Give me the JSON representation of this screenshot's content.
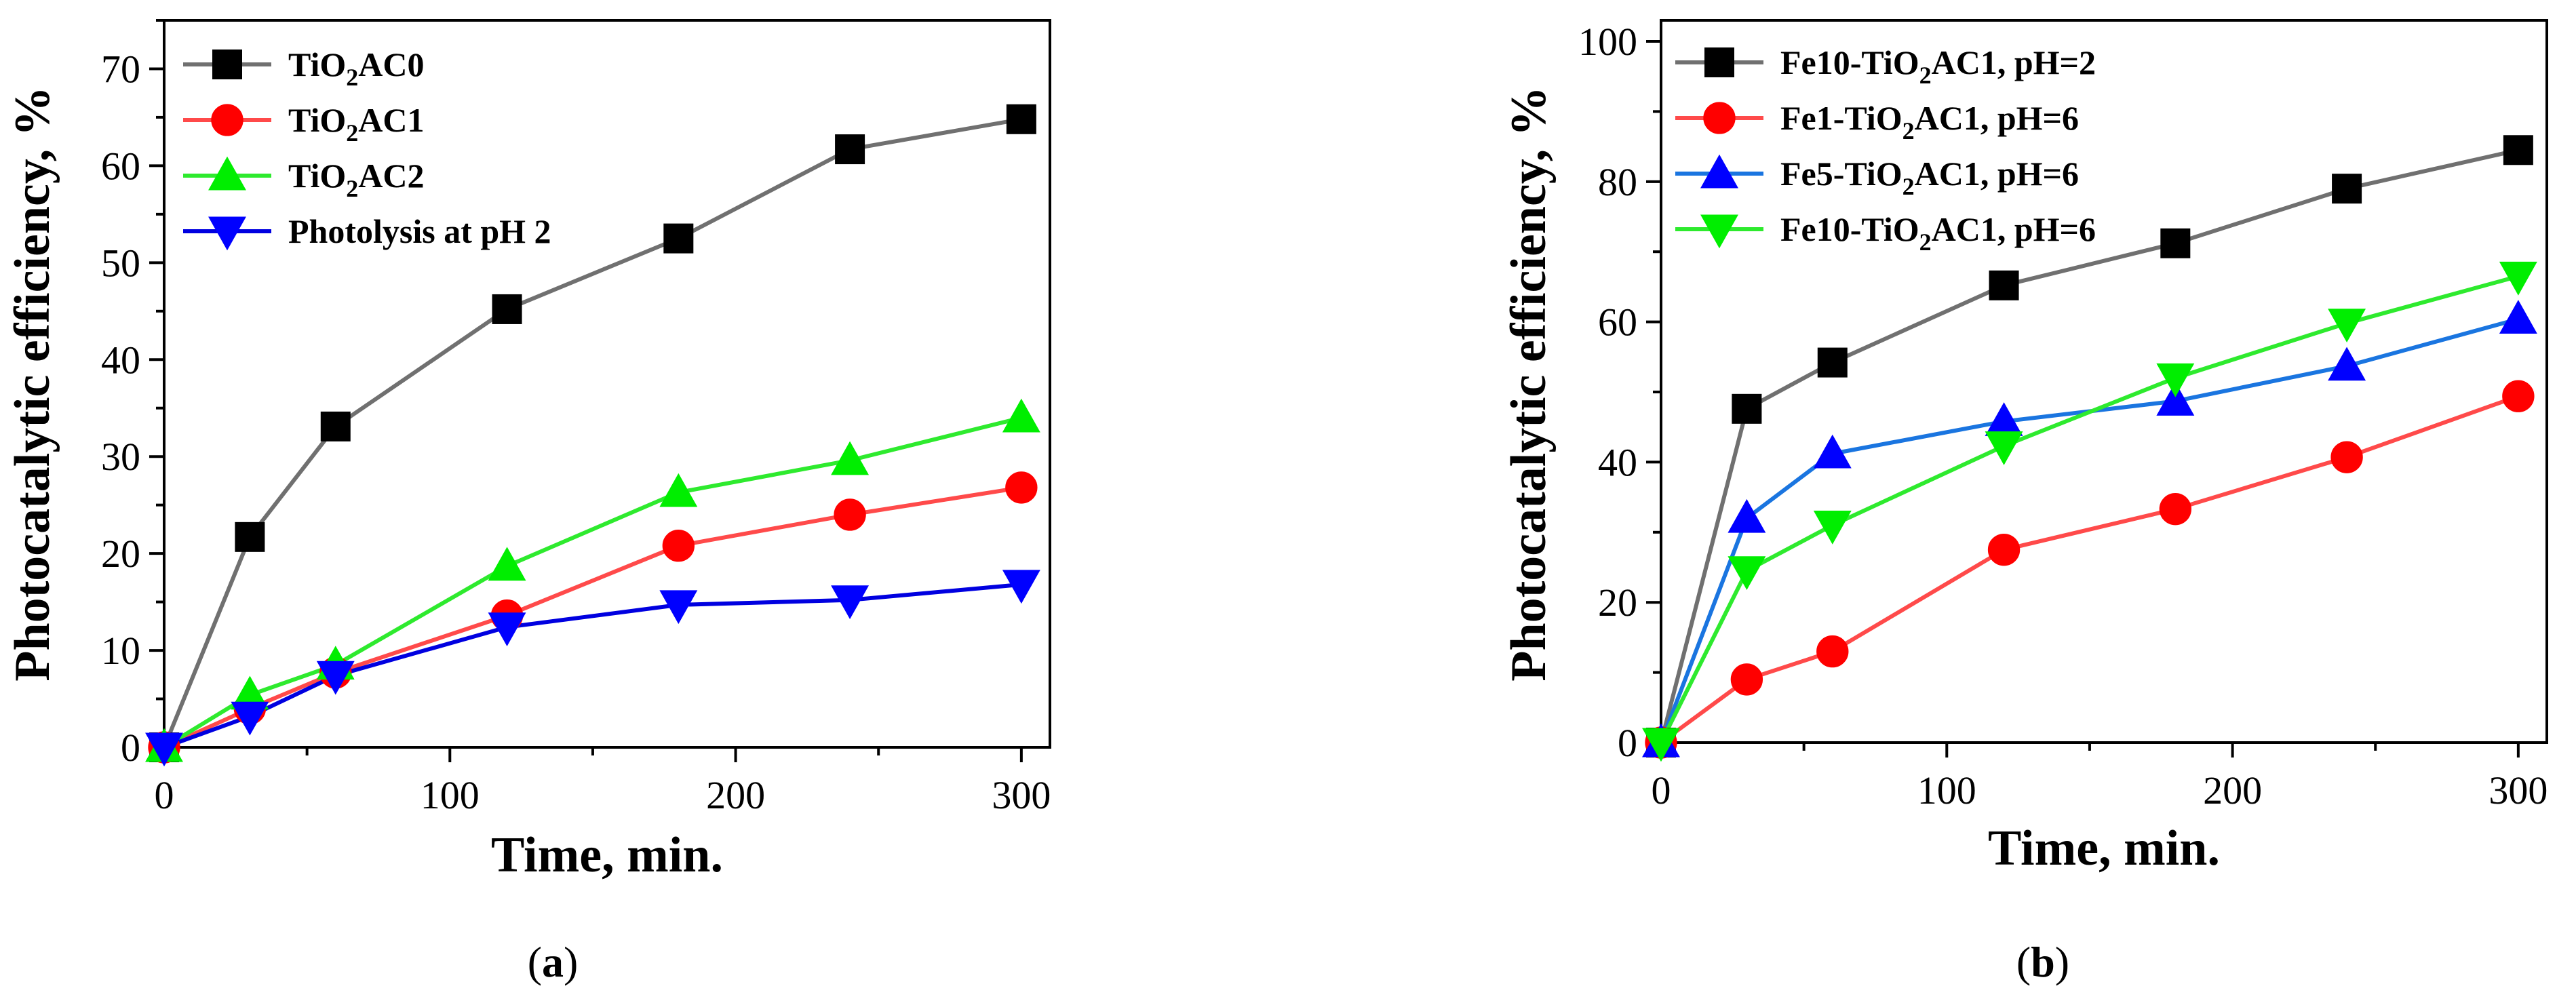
{
  "chart_data": [
    {
      "type": "line",
      "panel_label": "a",
      "xlabel": "Time, min.",
      "ylabel": "Photocatalytic efficiency, %",
      "xlim": [
        0,
        310
      ],
      "ylim": [
        0,
        75
      ],
      "xticks": [
        0,
        100,
        200,
        300
      ],
      "yticks": [
        0,
        10,
        20,
        30,
        40,
        50,
        60,
        70
      ],
      "legend_location": "top-left",
      "x": [
        0,
        30,
        60,
        120,
        180,
        240,
        300
      ],
      "series": [
        {
          "name_main": "TiO",
          "name_sub": "2",
          "name_rest": "AC0",
          "color": "#707070",
          "marker": "square",
          "marker_color": "#000000",
          "values": [
            0,
            21.7,
            33.1,
            45.2,
            52.5,
            61.7,
            64.8
          ]
        },
        {
          "name_main": "TiO",
          "name_sub": "2",
          "name_rest": "AC1",
          "color": "#ff4a4a",
          "marker": "circle",
          "marker_color": "#ff0000",
          "values": [
            0,
            4.0,
            7.7,
            13.6,
            20.8,
            24.0,
            26.8
          ]
        },
        {
          "name_main": "TiO",
          "name_sub": "2",
          "name_rest": "AC2",
          "color": "#2eea2e",
          "marker": "triangle-up",
          "marker_color": "#00ee00",
          "values": [
            0,
            5.4,
            8.5,
            18.7,
            26.3,
            29.6,
            34.0
          ]
        },
        {
          "name_main": "Photolysis at pH 2",
          "name_sub": "",
          "name_rest": "",
          "color": "#0000e0",
          "marker": "triangle-down",
          "marker_color": "#0000ff",
          "values": [
            0,
            3.2,
            7.4,
            12.4,
            14.7,
            15.2,
            16.8
          ]
        }
      ]
    },
    {
      "type": "line",
      "panel_label": "b",
      "xlabel": "Time, min.",
      "ylabel": "Photocatalytic efficiency, %",
      "xlim": [
        0,
        310
      ],
      "ylim": [
        0,
        103
      ],
      "xticks": [
        0,
        100,
        200,
        300
      ],
      "yticks": [
        0,
        20,
        40,
        60,
        80,
        100
      ],
      "legend_location": "top-left",
      "x": [
        0,
        30,
        60,
        120,
        180,
        240,
        300
      ],
      "series": [
        {
          "name_main": "Fe10-TiO",
          "name_sub": "2",
          "name_rest": "AC1, pH=2",
          "color": "#707070",
          "marker": "square",
          "marker_color": "#000000",
          "values": [
            0,
            47.6,
            54.2,
            65.2,
            71.2,
            79.0,
            84.5
          ]
        },
        {
          "name_main": "Fe1-TiO",
          "name_sub": "2",
          "name_rest": "AC1, pH=6",
          "color": "#ff4a4a",
          "marker": "circle",
          "marker_color": "#ff0000",
          "values": [
            0,
            9.0,
            13.0,
            27.5,
            33.3,
            40.7,
            49.4
          ]
        },
        {
          "name_main": "Fe5-TiO",
          "name_sub": "2",
          "name_rest": "AC1, pH=6",
          "color": "#1a75e0",
          "marker": "triangle-up",
          "marker_color": "#0000ff",
          "values": [
            0,
            32.0,
            41.2,
            45.8,
            48.7,
            53.7,
            60.4
          ]
        },
        {
          "name_main": "Fe10-TiO",
          "name_sub": "2",
          "name_rest": "AC1, pH=6",
          "color": "#2eea2e",
          "marker": "triangle-down",
          "marker_color": "#00ee00",
          "values": [
            0,
            24.5,
            31.0,
            42.3,
            52.0,
            59.8,
            66.5
          ]
        }
      ]
    }
  ],
  "captions": {
    "a_open": "(",
    "a_letter": "a",
    "a_close": ")",
    "b_open": "(",
    "b_letter": "b",
    "b_close": ")"
  }
}
